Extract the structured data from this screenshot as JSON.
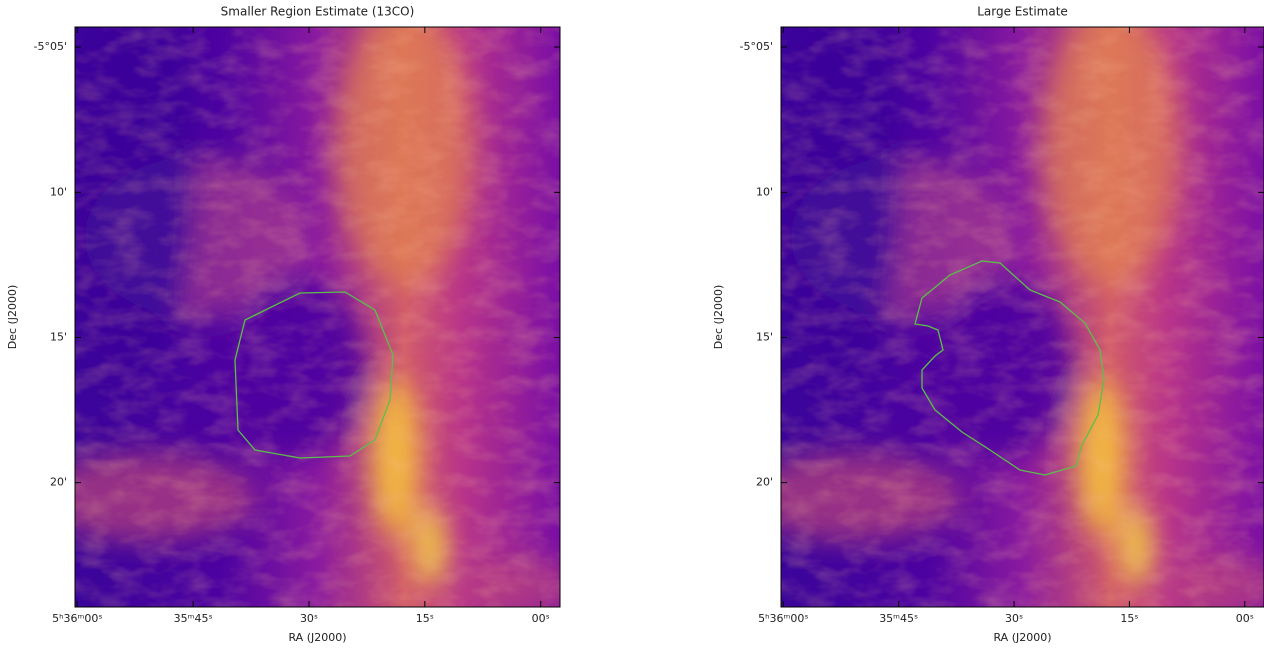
{
  "chart_data": [
    {
      "type": "image",
      "title": "Smaller Region Estimate (13CO)",
      "xlabel": "RA (J2000)",
      "ylabel": "Dec (J2000)",
      "xlim": [
        20160.3,
        20097.5
      ],
      "ylim": [
        -5.4047,
        -5.0718
      ],
      "xticks": [
        {
          "value": 20160,
          "label": "5ʰ36ᵐ00ˢ"
        },
        {
          "value": 20145,
          "label": "35ᵐ45ˢ"
        },
        {
          "value": 20130,
          "label": "30ˢ"
        },
        {
          "value": 20115,
          "label": "15ˢ"
        },
        {
          "value": 20100,
          "label": "00ˢ"
        }
      ],
      "yticks": [
        {
          "value": -5.0833,
          "label": "-5°05'"
        },
        {
          "value": -5.1667,
          "label": "10'"
        },
        {
          "value": -5.25,
          "label": "15'"
        },
        {
          "value": -5.3333,
          "label": "20'"
        }
      ]
    },
    {
      "type": "image",
      "title": "Large Estimate",
      "xlabel": "RA (J2000)",
      "ylabel": "Dec (J2000)",
      "xlim": [
        20160.3,
        20097.5
      ],
      "ylim": [
        -5.4047,
        -5.0718
      ],
      "xticks": [
        {
          "value": 20160,
          "label": "5ʰ36ᵐ00ˢ"
        },
        {
          "value": 20145,
          "label": "35ᵐ45ˢ"
        },
        {
          "value": 20130,
          "label": "30ˢ"
        },
        {
          "value": 20115,
          "label": "15ˢ"
        },
        {
          "value": 20100,
          "label": "00ˢ"
        }
      ],
      "yticks": [
        {
          "value": -5.0833,
          "label": "-5°05'"
        },
        {
          "value": -5.1667,
          "label": "10'"
        },
        {
          "value": -5.25,
          "label": "15'"
        },
        {
          "value": -5.3333,
          "label": "20'"
        }
      ]
    }
  ]
}
